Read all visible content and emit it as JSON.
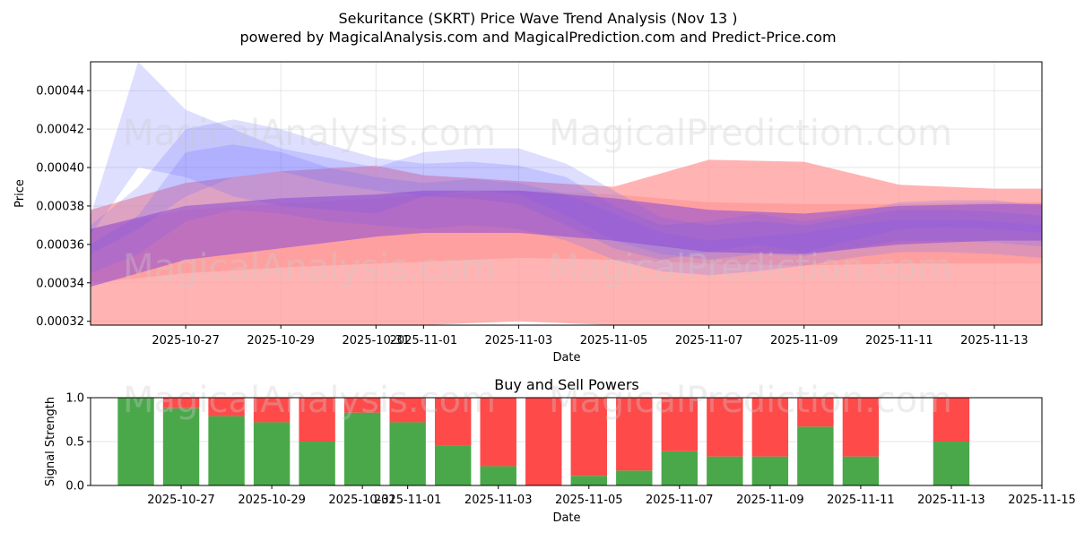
{
  "header": {
    "title": "Sekuritance (SKRT) Price Wave Trend Analysis (Nov 13 )",
    "subtitle": "powered by MagicalAnalysis.com and MagicalPrediction.com and Predict-Price.com"
  },
  "watermarks": {
    "left": "MagicalAnalysis.com",
    "right": "MagicalPrediction.com"
  },
  "colors": {
    "buy": "#4aa84a",
    "sell": "#ff4a4a",
    "wave_red": "#ff9a9a",
    "wave_blue": "#6b6bff",
    "wave_purple": "#8a4ad6"
  },
  "chart_data": [
    {
      "type": "area",
      "title": "",
      "xlabel": "Date",
      "ylabel": "Price",
      "ylim": [
        0.000318,
        0.000455
      ],
      "x_ticks": [
        "2025-10-27",
        "2025-10-29",
        "2025-10-31",
        "2025-11-01",
        "2025-11-03",
        "2025-11-05",
        "2025-11-07",
        "2025-11-09",
        "2025-11-11",
        "2025-11-13"
      ],
      "y_ticks": [
        "0.00032",
        "0.00034",
        "0.00036",
        "0.00038",
        "0.00040",
        "0.00042",
        "0.00044"
      ],
      "grid": true,
      "x_domain": [
        "2025-10-25",
        "2025-11-14"
      ],
      "series": [
        {
          "name": "red-wide-band",
          "color": "red",
          "x": [
            "2025-10-25",
            "2025-10-27",
            "2025-10-29",
            "2025-10-31",
            "2025-11-01",
            "2025-11-03",
            "2025-11-05",
            "2025-11-07",
            "2025-11-09",
            "2025-11-11",
            "2025-11-13",
            "2025-11-14"
          ],
          "upper": [
            0.000378,
            0.000392,
            0.000398,
            0.000401,
            0.000396,
            0.000393,
            0.00039,
            0.000404,
            0.000403,
            0.000391,
            0.000389,
            0.000389
          ],
          "lower": [
            0.000318,
            0.000318,
            0.000318,
            0.000318,
            0.000318,
            0.00032,
            0.000318,
            0.000318,
            0.000318,
            0.000318,
            0.000318,
            0.000318
          ]
        },
        {
          "name": "red-mid-band",
          "color": "red",
          "x": [
            "2025-10-25",
            "2025-10-27",
            "2025-10-29",
            "2025-10-31",
            "2025-11-01",
            "2025-11-03",
            "2025-11-05",
            "2025-11-07",
            "2025-11-09",
            "2025-11-11",
            "2025-11-13",
            "2025-11-14"
          ],
          "upper": [
            0.000368,
            0.000378,
            0.000381,
            0.000384,
            0.000386,
            0.000388,
            0.000386,
            0.000382,
            0.000381,
            0.000381,
            0.000382,
            0.000382
          ],
          "lower": [
            0.00034,
            0.000345,
            0.000348,
            0.00035,
            0.000351,
            0.000353,
            0.000352,
            0.00035,
            0.000349,
            0.00035,
            0.00035,
            0.00035
          ]
        },
        {
          "name": "blue-wave-1",
          "color": "blue",
          "x": [
            "2025-10-25",
            "2025-10-26",
            "2025-10-27",
            "2025-10-28",
            "2025-10-29",
            "2025-10-30",
            "2025-10-31",
            "2025-11-01",
            "2025-11-02",
            "2025-11-03",
            "2025-11-04",
            "2025-11-05",
            "2025-11-06",
            "2025-11-07",
            "2025-11-08",
            "2025-11-09",
            "2025-11-10",
            "2025-11-11",
            "2025-11-12",
            "2025-11-13",
            "2025-11-14"
          ],
          "upper": [
            0.00037,
            0.00039,
            0.00042,
            0.000425,
            0.00042,
            0.000412,
            0.000405,
            0.000402,
            0.000403,
            0.000401,
            0.000395,
            0.00038,
            0.00037,
            0.000372,
            0.000376,
            0.000372,
            0.000376,
            0.000382,
            0.000383,
            0.000383,
            0.00038
          ],
          "lower": [
            0.000355,
            0.000368,
            0.000385,
            0.000395,
            0.000398,
            0.000392,
            0.000388,
            0.000385,
            0.000384,
            0.000381,
            0.00037,
            0.000358,
            0.000352,
            0.000356,
            0.00036,
            0.000356,
            0.000362,
            0.000368,
            0.000369,
            0.000368,
            0.000366
          ]
        },
        {
          "name": "blue-wave-2",
          "color": "blue",
          "x": [
            "2025-10-25",
            "2025-10-26",
            "2025-10-27",
            "2025-10-28",
            "2025-10-29",
            "2025-10-30",
            "2025-10-31",
            "2025-11-01",
            "2025-11-02",
            "2025-11-03",
            "2025-11-04",
            "2025-11-05",
            "2025-11-06",
            "2025-11-07",
            "2025-11-08",
            "2025-11-09",
            "2025-11-10",
            "2025-11-11",
            "2025-11-12",
            "2025-11-13",
            "2025-11-14"
          ],
          "upper": [
            0.000375,
            0.000455,
            0.00043,
            0.00042,
            0.00041,
            0.000405,
            0.0004,
            0.000408,
            0.00041,
            0.00041,
            0.000402,
            0.000388,
            0.000374,
            0.00037,
            0.000372,
            0.00037,
            0.000374,
            0.000378,
            0.000378,
            0.000377,
            0.000375
          ],
          "lower": [
            0.000365,
            0.0004,
            0.000395,
            0.000385,
            0.00038,
            0.000378,
            0.000376,
            0.000385,
            0.000388,
            0.000386,
            0.000375,
            0.000362,
            0.000355,
            0.000352,
            0.000355,
            0.000354,
            0.000358,
            0.000362,
            0.000362,
            0.000361,
            0.000359
          ]
        },
        {
          "name": "blue-wave-3",
          "color": "blue",
          "x": [
            "2025-10-25",
            "2025-10-26",
            "2025-10-27",
            "2025-10-28",
            "2025-10-29",
            "2025-10-30",
            "2025-10-31",
            "2025-11-01",
            "2025-11-02",
            "2025-11-03",
            "2025-11-04",
            "2025-11-05",
            "2025-11-06",
            "2025-11-07",
            "2025-11-08",
            "2025-11-09",
            "2025-11-10",
            "2025-11-11",
            "2025-11-12",
            "2025-11-13",
            "2025-11-14"
          ],
          "upper": [
            0.00036,
            0.000375,
            0.000408,
            0.000412,
            0.000408,
            0.0004,
            0.000395,
            0.000392,
            0.000394,
            0.000392,
            0.000386,
            0.000376,
            0.000366,
            0.000362,
            0.000364,
            0.000366,
            0.00037,
            0.000373,
            0.000373,
            0.000372,
            0.00037
          ],
          "lower": [
            0.000345,
            0.000355,
            0.000372,
            0.000378,
            0.000376,
            0.000372,
            0.00037,
            0.000368,
            0.00037,
            0.000368,
            0.000362,
            0.000352,
            0.000346,
            0.000344,
            0.000346,
            0.000349,
            0.000353,
            0.000356,
            0.000356,
            0.000355,
            0.000353
          ]
        },
        {
          "name": "purple-band",
          "color": "purple",
          "x": [
            "2025-10-25",
            "2025-10-27",
            "2025-10-29",
            "2025-10-31",
            "2025-11-01",
            "2025-11-03",
            "2025-11-05",
            "2025-11-07",
            "2025-11-09",
            "2025-11-11",
            "2025-11-13",
            "2025-11-14"
          ],
          "upper": [
            0.000368,
            0.00038,
            0.000384,
            0.000386,
            0.000388,
            0.000388,
            0.000384,
            0.000378,
            0.000376,
            0.00038,
            0.000381,
            0.000381
          ],
          "lower": [
            0.000338,
            0.000352,
            0.000358,
            0.000364,
            0.000366,
            0.000366,
            0.000362,
            0.000356,
            0.000355,
            0.00036,
            0.000362,
            0.000362
          ]
        }
      ]
    },
    {
      "type": "bar",
      "title": "Buy and Sell Powers",
      "xlabel": "Date",
      "ylabel": "Signal Strength",
      "ylim": [
        0,
        1
      ],
      "x_domain": [
        "2025-10-25",
        "2025-11-15"
      ],
      "x_ticks": [
        "2025-10-27",
        "2025-10-29",
        "2025-10-31",
        "2025-11-01",
        "2025-11-03",
        "2025-11-05",
        "2025-11-07",
        "2025-11-09",
        "2025-11-11",
        "2025-11-13",
        "2025-11-15"
      ],
      "y_ticks": [
        "0.0",
        "0.5",
        "1.0"
      ],
      "grid": true,
      "categories": [
        "2025-10-26",
        "2025-10-27",
        "2025-10-28",
        "2025-10-29",
        "2025-10-30",
        "2025-10-31",
        "2025-11-01",
        "2025-11-02",
        "2025-11-03",
        "2025-11-04",
        "2025-11-05",
        "2025-11-06",
        "2025-11-07",
        "2025-11-08",
        "2025-11-09",
        "2025-11-10",
        "2025-11-11",
        "2025-11-13"
      ],
      "series": [
        {
          "name": "Buy",
          "values": [
            1.0,
            0.88,
            0.79,
            0.72,
            0.5,
            0.83,
            0.72,
            0.45,
            0.22,
            0.0,
            0.11,
            0.17,
            0.39,
            0.33,
            0.33,
            0.67,
            0.33,
            0.5
          ]
        },
        {
          "name": "Sell",
          "values": [
            0.0,
            0.12,
            0.21,
            0.28,
            0.5,
            0.17,
            0.28,
            0.55,
            0.78,
            1.0,
            0.89,
            0.83,
            0.61,
            0.67,
            0.67,
            0.33,
            0.67,
            0.5
          ]
        }
      ]
    }
  ]
}
